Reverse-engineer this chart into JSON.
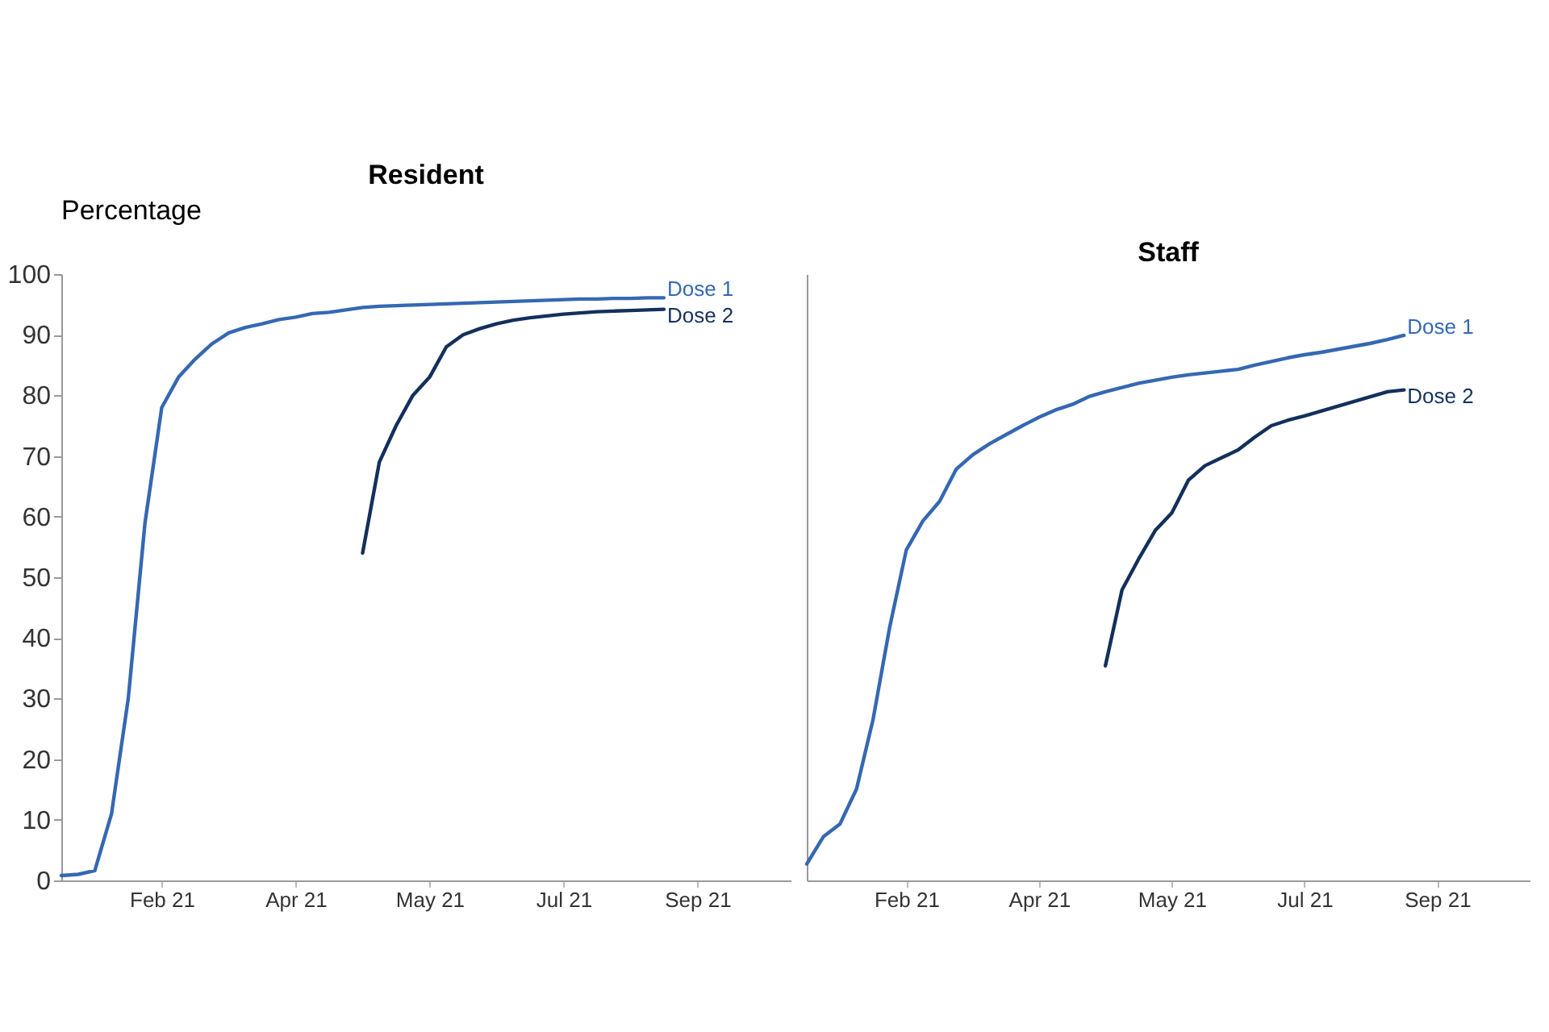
{
  "chart_data": [
    {
      "type": "line",
      "title": "Resident",
      "ylabel": "Percentage",
      "x": [
        "2020-12-27",
        "2021-01-03",
        "2021-01-10",
        "2021-01-17",
        "2021-01-24",
        "2021-01-31",
        "2021-02-07",
        "2021-02-14",
        "2021-02-21",
        "2021-02-28",
        "2021-03-07",
        "2021-03-14",
        "2021-03-21",
        "2021-03-28",
        "2021-04-04",
        "2021-04-11",
        "2021-04-18",
        "2021-04-25",
        "2021-05-02",
        "2021-05-09",
        "2021-05-16",
        "2021-05-23",
        "2021-05-30",
        "2021-06-06",
        "2021-06-13",
        "2021-06-20",
        "2021-06-27",
        "2021-07-04",
        "2021-07-11",
        "2021-07-18",
        "2021-07-25",
        "2021-08-01",
        "2021-08-08",
        "2021-08-15",
        "2021-08-22",
        "2021-08-29",
        "2021-09-05"
      ],
      "series": [
        {
          "name": "Dose 1",
          "color": "#3568b2",
          "values": [
            0.8,
            1.0,
            1.6,
            11,
            30,
            59,
            78,
            83,
            86,
            88.5,
            90.3,
            91.2,
            91.8,
            92.5,
            92.9,
            93.5,
            93.7,
            94.1,
            94.5,
            94.7,
            94.8,
            94.9,
            95.0,
            95.1,
            95.2,
            95.3,
            95.4,
            95.5,
            95.6,
            95.7,
            95.8,
            95.9,
            95.9,
            96.0,
            96.0,
            96.1,
            96.1
          ]
        },
        {
          "name": "Dose 2",
          "color": "#13305c",
          "values": [
            null,
            null,
            null,
            null,
            null,
            null,
            null,
            null,
            null,
            null,
            null,
            null,
            null,
            null,
            null,
            null,
            null,
            null,
            54,
            69,
            75,
            80,
            83,
            88,
            90,
            91,
            91.8,
            92.4,
            92.8,
            93.1,
            93.4,
            93.6,
            93.8,
            93.9,
            94.0,
            94.1,
            94.2
          ]
        }
      ],
      "xlim": [
        "2020-12-27",
        "2021-10-28"
      ],
      "xticks": [
        {
          "value": "2021-02-07",
          "label": "Feb 21"
        },
        {
          "value": "2021-04-04",
          "label": "Apr 21"
        },
        {
          "value": "2021-05-30",
          "label": "May 21"
        },
        {
          "value": "2021-07-25",
          "label": "Jul 21"
        },
        {
          "value": "2021-09-19",
          "label": "Sep 21"
        }
      ],
      "ylim": [
        0,
        100
      ],
      "yticks": [
        0,
        10,
        20,
        30,
        40,
        50,
        60,
        70,
        80,
        90,
        100
      ],
      "grid": false
    },
    {
      "type": "line",
      "title": "Staff",
      "x": [
        "2020-12-27",
        "2021-01-03",
        "2021-01-10",
        "2021-01-17",
        "2021-01-24",
        "2021-01-31",
        "2021-02-07",
        "2021-02-14",
        "2021-02-21",
        "2021-02-28",
        "2021-03-07",
        "2021-03-14",
        "2021-03-21",
        "2021-03-28",
        "2021-04-04",
        "2021-04-11",
        "2021-04-18",
        "2021-04-25",
        "2021-05-02",
        "2021-05-09",
        "2021-05-16",
        "2021-05-23",
        "2021-05-30",
        "2021-06-06",
        "2021-06-13",
        "2021-06-20",
        "2021-06-27",
        "2021-07-04",
        "2021-07-11",
        "2021-07-18",
        "2021-07-25",
        "2021-08-01",
        "2021-08-08",
        "2021-08-15",
        "2021-08-22",
        "2021-08-29",
        "2021-09-05"
      ],
      "series": [
        {
          "name": "Dose 1",
          "color": "#3568b2",
          "values": [
            2.7,
            7.2,
            9.3,
            15.1,
            26.6,
            41.8,
            54.5,
            59.3,
            62.5,
            67.8,
            70.2,
            72,
            73.5,
            75,
            76.4,
            77.6,
            78.5,
            79.8,
            80.6,
            81.3,
            82,
            82.5,
            83,
            83.4,
            83.7,
            84,
            84.3,
            85,
            85.6,
            86.2,
            86.7,
            87.1,
            87.6,
            88.1,
            88.6,
            89.2,
            89.9
          ]
        },
        {
          "name": "Dose 2",
          "color": "#13305c",
          "values": [
            null,
            null,
            null,
            null,
            null,
            null,
            null,
            null,
            null,
            null,
            null,
            null,
            null,
            null,
            null,
            null,
            null,
            null,
            35.4,
            47.9,
            53,
            57.7,
            60.6,
            66,
            68.4,
            69.7,
            71,
            73.1,
            75,
            75.9,
            76.6,
            77.4,
            78.2,
            79,
            79.8,
            80.6,
            80.9
          ]
        }
      ],
      "xlim": [
        "2020-12-27",
        "2021-10-28"
      ],
      "xticks": [
        {
          "value": "2021-02-07",
          "label": "Feb 21"
        },
        {
          "value": "2021-04-04",
          "label": "Apr 21"
        },
        {
          "value": "2021-05-30",
          "label": "May 21"
        },
        {
          "value": "2021-07-25",
          "label": "Jul 21"
        },
        {
          "value": "2021-09-19",
          "label": "Sep 21"
        }
      ],
      "ylim": [
        0,
        100
      ],
      "grid": false,
      "tick_labels": "x"
    }
  ]
}
